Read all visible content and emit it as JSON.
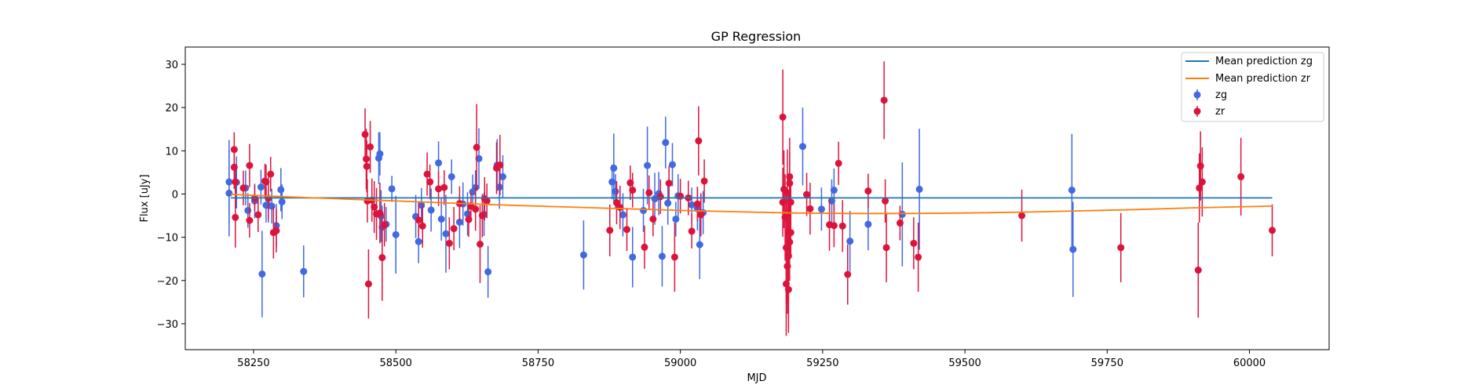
{
  "chart_data": {
    "type": "scatter",
    "title": "GP Regression",
    "xlabel": "MJD",
    "ylabel": "Flux [uJy]",
    "xlim": [
      58130,
      60140
    ],
    "ylim": [
      -36,
      34
    ],
    "x_ticks": [
      58250,
      58500,
      58750,
      59000,
      59250,
      59500,
      59750,
      60000
    ],
    "y_ticks": [
      -30,
      -20,
      -10,
      0,
      10,
      20,
      30
    ],
    "grid": false,
    "legend_position": "top-right",
    "legend": [
      "Mean prediction zg",
      "Mean prediction zr",
      "zg",
      "zr"
    ],
    "colors": {
      "zg_line": "#1f77b4",
      "zr_line": "#ff7f0e",
      "zg_points": "#4169e1",
      "zr_points": "#dc143c"
    },
    "series": [
      {
        "name": "Mean prediction zg",
        "kind": "line",
        "x": [
          58210,
          58300,
          58500,
          58750,
          59000,
          59250,
          59500,
          59750,
          60040
        ],
        "y": [
          -0.9,
          -0.9,
          -0.9,
          -0.9,
          -0.9,
          -0.9,
          -0.9,
          -0.9,
          -0.9
        ]
      },
      {
        "name": "Mean prediction zr",
        "kind": "line",
        "x": [
          58210,
          58300,
          58400,
          58500,
          58600,
          58700,
          58800,
          58900,
          59000,
          59100,
          59200,
          59300,
          59400,
          59500,
          59600,
          59700,
          59800,
          59900,
          60000,
          60040
        ],
        "y": [
          -0.1,
          -0.6,
          -1.1,
          -1.6,
          -2.1,
          -2.6,
          -3.0,
          -3.4,
          -3.8,
          -4.1,
          -4.4,
          -4.5,
          -4.5,
          -4.4,
          -4.2,
          -3.9,
          -3.6,
          -3.2,
          -2.9,
          -2.8
        ]
      },
      {
        "name": "zg",
        "kind": "errorbar",
        "points": [
          [
            58207,
            2.8,
            9.7
          ],
          [
            58207,
            0.2,
            10
          ],
          [
            58220,
            2.7,
            6
          ],
          [
            58236,
            1.4,
            4
          ],
          [
            58240,
            -3.8,
            4
          ],
          [
            58252,
            -1.6,
            4
          ],
          [
            58263,
            1.6,
            4
          ],
          [
            58265,
            -18.5,
            10
          ],
          [
            58272,
            -2.6,
            4
          ],
          [
            58276,
            -2.6,
            4
          ],
          [
            58282,
            -2.8,
            4
          ],
          [
            58290,
            -7.3,
            5
          ],
          [
            58298,
            1.0,
            5
          ],
          [
            58300,
            -1.8,
            4
          ],
          [
            58338,
            -17.9,
            6
          ],
          [
            58470,
            8.3,
            6
          ],
          [
            58472,
            9.3,
            5
          ],
          [
            58474,
            -5.1,
            6
          ],
          [
            58476,
            -7.7,
            5
          ],
          [
            58483,
            -7.0,
            4
          ],
          [
            58493,
            1.2,
            3
          ],
          [
            58500,
            -9.4,
            9
          ],
          [
            58535,
            -5.2,
            5
          ],
          [
            58540,
            -11.0,
            5
          ],
          [
            58545,
            -2.6,
            4
          ],
          [
            58562,
            -3.7,
            5
          ],
          [
            58575,
            7.2,
            5
          ],
          [
            58580,
            -5.8,
            5
          ],
          [
            58588,
            -9.2,
            9
          ],
          [
            58598,
            4.0,
            4
          ],
          [
            58612,
            -6.5,
            6
          ],
          [
            58618,
            -2.3,
            5
          ],
          [
            58626,
            -4.6,
            5
          ],
          [
            58635,
            0.5,
            4
          ],
          [
            58640,
            1.5,
            4
          ],
          [
            58646,
            8.2,
            7
          ],
          [
            58655,
            -4.7,
            5
          ],
          [
            58662,
            -18.0,
            6
          ],
          [
            58678,
            6.7,
            6
          ],
          [
            58682,
            1.6,
            5
          ],
          [
            58688,
            4.0,
            5
          ],
          [
            58830,
            -14.1,
            8
          ],
          [
            58880,
            2.8,
            4
          ],
          [
            58883,
            6.0,
            8
          ],
          [
            58886,
            0.6,
            4
          ],
          [
            58899,
            -4.8,
            5
          ],
          [
            58916,
            -14.6,
            7
          ],
          [
            58935,
            -3.8,
            5
          ],
          [
            58942,
            6.6,
            9
          ],
          [
            58955,
            -1.1,
            6
          ],
          [
            58962,
            0.1,
            5
          ],
          [
            58968,
            -14.4,
            7
          ],
          [
            58974,
            11.9,
            6
          ],
          [
            58978,
            -2.1,
            5
          ],
          [
            58986,
            6.8,
            5
          ],
          [
            58992,
            -5.8,
            4
          ],
          [
            58996,
            -0.4,
            5
          ],
          [
            59020,
            -2.5,
            4
          ],
          [
            59030,
            -3.4,
            5
          ],
          [
            59034,
            -11.7,
            8
          ],
          [
            59040,
            -4.3,
            5
          ],
          [
            59215,
            11.0,
            9
          ],
          [
            59248,
            -3.5,
            5
          ],
          [
            59266,
            -1.6,
            5
          ],
          [
            59270,
            0.9,
            5
          ],
          [
            59298,
            -10.9,
            7
          ],
          [
            59330,
            -7.0,
            6
          ],
          [
            59390,
            -4.7,
            12
          ],
          [
            59420,
            1.1,
            14
          ],
          [
            59688,
            0.9,
            13
          ],
          [
            59690,
            -12.8,
            11
          ]
        ]
      },
      {
        "name": "zr",
        "kind": "errorbar",
        "points": [
          [
            58216,
            6.2,
            5
          ],
          [
            58216,
            10.3,
            4
          ],
          [
            58218,
            2.8,
            3
          ],
          [
            58218,
            -5.4,
            7
          ],
          [
            58232,
            1.4,
            4
          ],
          [
            58243,
            6.6,
            5
          ],
          [
            58243,
            -6.1,
            4
          ],
          [
            58252,
            -0.9,
            3
          ],
          [
            58258,
            -4.8,
            4
          ],
          [
            58270,
            3.0,
            4
          ],
          [
            58272,
            2.8,
            4
          ],
          [
            58276,
            -1.0,
            5
          ],
          [
            58280,
            4.6,
            4
          ],
          [
            58285,
            -8.9,
            6
          ],
          [
            58290,
            -8.5,
            5
          ],
          [
            58446,
            13.8,
            6
          ],
          [
            58448,
            8.1,
            7
          ],
          [
            58449,
            6.4,
            6
          ],
          [
            58450,
            -1.6,
            5
          ],
          [
            58452,
            -20.8,
            8
          ],
          [
            58455,
            10.9,
            6
          ],
          [
            58458,
            -1.4,
            5
          ],
          [
            58462,
            -3.0,
            6
          ],
          [
            58466,
            -4.6,
            6
          ],
          [
            58472,
            -4.4,
            7
          ],
          [
            58476,
            -14.7,
            10
          ],
          [
            58480,
            -7.1,
            5
          ],
          [
            58540,
            -6.0,
            4
          ],
          [
            58547,
            -7.4,
            5
          ],
          [
            58555,
            4.6,
            5
          ],
          [
            58560,
            2.8,
            4
          ],
          [
            58575,
            1.2,
            4
          ],
          [
            58585,
            1.5,
            4
          ],
          [
            58594,
            -11.4,
            6
          ],
          [
            58602,
            -8.0,
            5
          ],
          [
            58612,
            -2.2,
            4
          ],
          [
            58628,
            -5.9,
            4
          ],
          [
            58632,
            -2.8,
            3
          ],
          [
            58640,
            -3.5,
            5
          ],
          [
            58642,
            10.8,
            10
          ],
          [
            58648,
            -11.6,
            9
          ],
          [
            58652,
            -5.0,
            5
          ],
          [
            58656,
            -1.1,
            5
          ],
          [
            58660,
            -1.6,
            4
          ],
          [
            58677,
            6.0,
            6
          ],
          [
            58683,
            6.7,
            7
          ],
          [
            58876,
            -8.4,
            6
          ],
          [
            58888,
            -2.0,
            5
          ],
          [
            58894,
            -3.1,
            5
          ],
          [
            58906,
            -8.2,
            5
          ],
          [
            58912,
            2.6,
            4
          ],
          [
            58916,
            0.9,
            4
          ],
          [
            58937,
            -12.3,
            5
          ],
          [
            58945,
            0.3,
            4
          ],
          [
            58952,
            -5.8,
            4
          ],
          [
            58965,
            -0.6,
            4
          ],
          [
            58980,
            2.5,
            4
          ],
          [
            58990,
            -14.6,
            8
          ],
          [
            59000,
            -0.5,
            4
          ],
          [
            59014,
            -0.9,
            4
          ],
          [
            59020,
            -8.6,
            4
          ],
          [
            59030,
            -2.3,
            4
          ],
          [
            59032,
            12.3,
            8
          ],
          [
            59036,
            -4.8,
            5
          ],
          [
            59042,
            3.0,
            5
          ],
          [
            59180,
            17.8,
            11
          ],
          [
            59180,
            -1.9,
            8
          ],
          [
            59182,
            1.1,
            9
          ],
          [
            59184,
            -5.4,
            10
          ],
          [
            59186,
            -12.4,
            13
          ],
          [
            59186,
            -20.8,
            12
          ],
          [
            59188,
            0.3,
            10
          ],
          [
            59188,
            -16.7,
            11
          ],
          [
            59190,
            -8.7,
            9
          ],
          [
            59190,
            -22.1,
            10
          ],
          [
            59190,
            -14.3,
            11
          ],
          [
            59192,
            4.0,
            9
          ],
          [
            59192,
            -11.1,
            9
          ],
          [
            59192,
            2.5,
            7
          ],
          [
            59194,
            -8.9,
            6
          ],
          [
            59194,
            -1.9,
            6
          ],
          [
            59222,
            -0.1,
            5
          ],
          [
            59228,
            -3.4,
            6
          ],
          [
            59262,
            -7.1,
            6
          ],
          [
            59270,
            -7.3,
            5
          ],
          [
            59278,
            7.1,
            5
          ],
          [
            59285,
            -7.4,
            6
          ],
          [
            59294,
            -18.6,
            7
          ],
          [
            59330,
            0.7,
            4
          ],
          [
            59358,
            21.7,
            9
          ],
          [
            59360,
            -1.6,
            5
          ],
          [
            59362,
            -12.4,
            8
          ],
          [
            59386,
            -6.7,
            4
          ],
          [
            59410,
            -11.4,
            6
          ],
          [
            59418,
            -14.6,
            8
          ],
          [
            59600,
            -5.0,
            6
          ],
          [
            59774,
            -12.4,
            8
          ],
          [
            59910,
            -17.6,
            11
          ],
          [
            59912,
            1.4,
            8
          ],
          [
            59914,
            6.5,
            8
          ],
          [
            59917,
            2.8,
            8
          ],
          [
            59985,
            4.0,
            9
          ],
          [
            60040,
            -8.4,
            6
          ]
        ]
      }
    ]
  }
}
